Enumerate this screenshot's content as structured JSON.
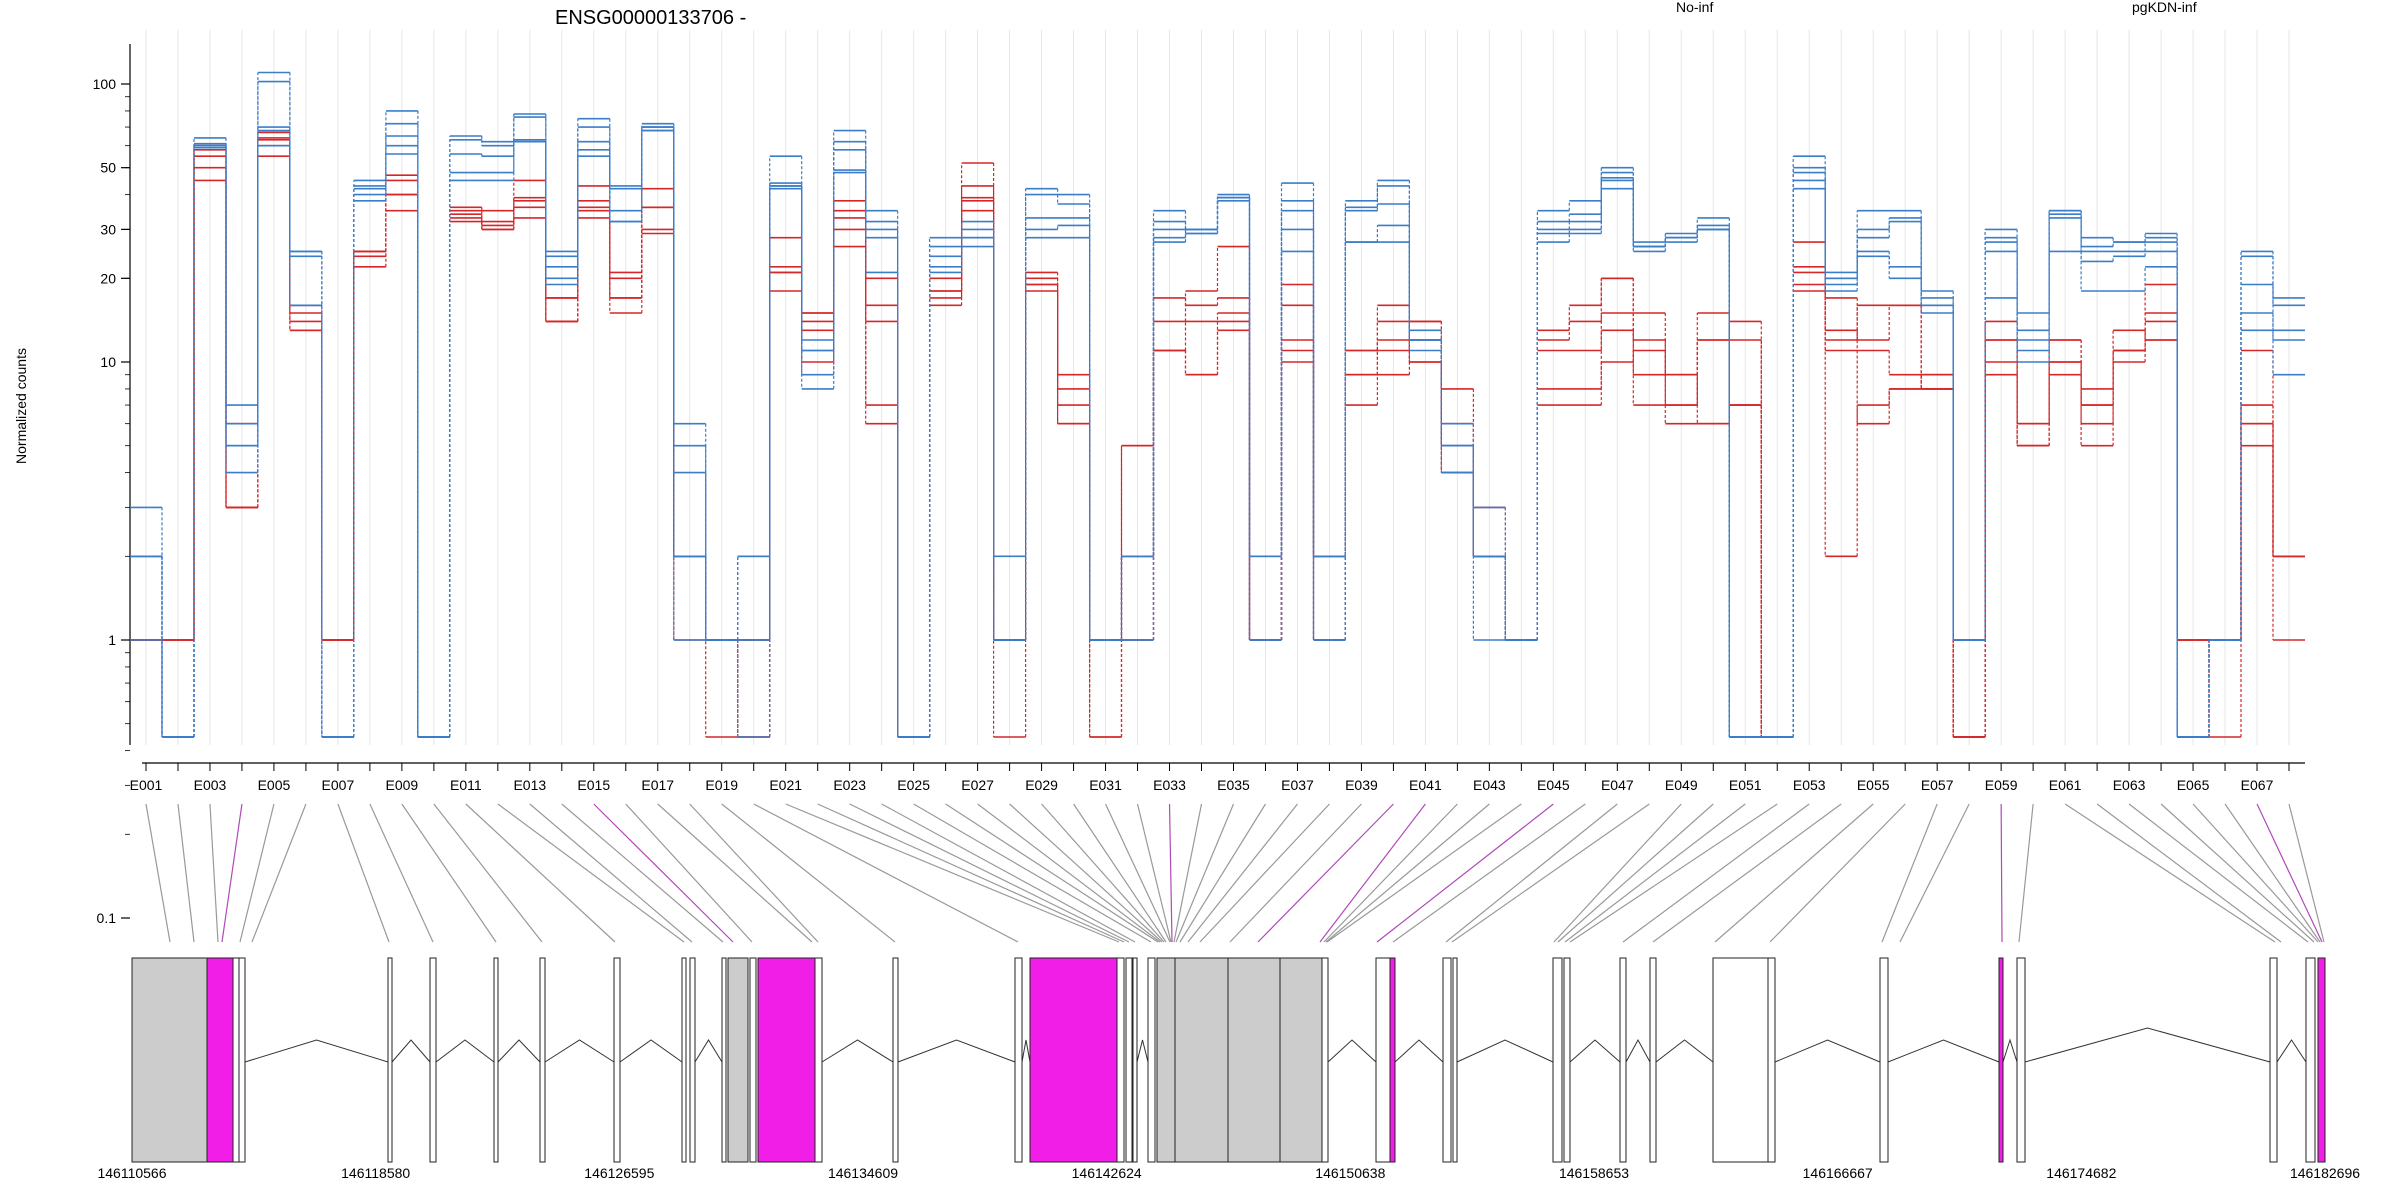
{
  "chart_data": {
    "type": "line",
    "title": "ENSG00000133706 -",
    "ylabel": "Normalized counts",
    "xlabel": "",
    "y_scale": "log (pseudo, with zero floor)",
    "y_ticks": [
      0.1,
      1,
      10,
      20,
      30,
      50,
      100
    ],
    "y_tick_labels": [
      "0.1",
      "1",
      "10",
      "20",
      "30",
      "50",
      "100"
    ],
    "ylim": [
      0.09,
      130
    ],
    "grid": "vertical, light, one line per exon",
    "legend": "top-right",
    "exons": [
      "E001",
      "E002",
      "E003",
      "E004",
      "E005",
      "E006",
      "E007",
      "E008",
      "E009",
      "E010",
      "E011",
      "E012",
      "E013",
      "E014",
      "E015",
      "E016",
      "E017",
      "E018",
      "E019",
      "E020",
      "E021",
      "E022",
      "E023",
      "E024",
      "E025",
      "E026",
      "E027",
      "E028",
      "E029",
      "E030",
      "E031",
      "E032",
      "E033",
      "E034",
      "E035",
      "E036",
      "E037",
      "E038",
      "E039",
      "E040",
      "E041",
      "E042",
      "E043",
      "E044",
      "E045",
      "E046",
      "E047",
      "E048",
      "E049",
      "E050",
      "E051",
      "E052",
      "E053",
      "E054",
      "E055",
      "E056",
      "E057",
      "E058",
      "E059",
      "E060",
      "E061",
      "E062",
      "E063",
      "E064",
      "E065",
      "E066",
      "E067",
      "E068"
    ],
    "exon_tick_labels": [
      "E001",
      "E003",
      "E005",
      "E007",
      "E009",
      "E011",
      "E013",
      "E015",
      "E017",
      "E019",
      "E021",
      "E023",
      "E025",
      "E027",
      "E029",
      "E031",
      "E033",
      "E035",
      "E037",
      "E039",
      "E041",
      "E043",
      "E045",
      "E047",
      "E049",
      "E051",
      "E053",
      "E055",
      "E057",
      "E059",
      "E061",
      "E063",
      "E065",
      "E067"
    ],
    "groups": [
      {
        "name": "No-inf",
        "color": "#d62728"
      },
      {
        "name": "pgKDN-inf",
        "color": "#3a7dc9"
      }
    ],
    "series": [
      {
        "group": "No-inf",
        "values": [
          2,
          1,
          60,
          6,
          67,
          14,
          1,
          25,
          45,
          0,
          35,
          30,
          38,
          17,
          38,
          21,
          36,
          2,
          1,
          1,
          21,
          15,
          35,
          20,
          0,
          18,
          39,
          1,
          19,
          8,
          1,
          5,
          14,
          18,
          26,
          1,
          16,
          2,
          11,
          16,
          10,
          4,
          2,
          1,
          12,
          14,
          20,
          15,
          7,
          15,
          7,
          0,
          19,
          17,
          12,
          16,
          8,
          0,
          12,
          5,
          10,
          5,
          11,
          15,
          1,
          1,
          5,
          2
        ]
      },
      {
        "group": "No-inf",
        "values": [
          1,
          1,
          55,
          3,
          63,
          15,
          1,
          22,
          40,
          0,
          33,
          31,
          36,
          14,
          33,
          15,
          30,
          2,
          1,
          1,
          18,
          10,
          30,
          16,
          0,
          16,
          35,
          1,
          18,
          7,
          1,
          1,
          11,
          9,
          15,
          1,
          10,
          1,
          9,
          12,
          10,
          8,
          2,
          1,
          8,
          8,
          15,
          12,
          6,
          6,
          7,
          0,
          22,
          2,
          7,
          8,
          9,
          0,
          10,
          6,
          12,
          8,
          10,
          12,
          0,
          1,
          6,
          2
        ]
      },
      {
        "group": "No-inf",
        "values": [
          1,
          1,
          50,
          3,
          60,
          13,
          1,
          25,
          35,
          0,
          34,
          32,
          39,
          17,
          35,
          17,
          36,
          1,
          1,
          0,
          22,
          13,
          33,
          14,
          0,
          18,
          43,
          1,
          19,
          6,
          1,
          2,
          11,
          14,
          14,
          1,
          12,
          2,
          9,
          11,
          14,
          5,
          2,
          1,
          11,
          11,
          13,
          7,
          7,
          12,
          14,
          0,
          18,
          13,
          11,
          9,
          8,
          0,
          9,
          6,
          12,
          7,
          11,
          14,
          1,
          0,
          7,
          2
        ]
      },
      {
        "group": "No-inf",
        "values": [
          1,
          0,
          45,
          3,
          55,
          13,
          1,
          25,
          40,
          0,
          32,
          30,
          33,
          14,
          36,
          17,
          29,
          2,
          0,
          1,
          21,
          14,
          26,
          7,
          0,
          17,
          38,
          0,
          21,
          6,
          0,
          1,
          11,
          9,
          13,
          1,
          11,
          1,
          7,
          9,
          12,
          6,
          3,
          1,
          7,
          7,
          10,
          11,
          9,
          6,
          12,
          0,
          21,
          11,
          6,
          8,
          8,
          0,
          12,
          5,
          9,
          6,
          13,
          12,
          1,
          1,
          6,
          1
        ]
      },
      {
        "group": "No-inf",
        "values": [
          1,
          1,
          58,
          3,
          64,
          16,
          1,
          24,
          47,
          0,
          36,
          35,
          45,
          14,
          43,
          20,
          42,
          2,
          1,
          0,
          28,
          15,
          38,
          6,
          0,
          20,
          52,
          1,
          20,
          9,
          0,
          5,
          17,
          16,
          17,
          1,
          19,
          2,
          11,
          14,
          14,
          4,
          2,
          1,
          13,
          16,
          20,
          9,
          9,
          12,
          7,
          0,
          27,
          12,
          16,
          16,
          9,
          0,
          14,
          5,
          10,
          7,
          11,
          19,
          1,
          1,
          11,
          2
        ]
      },
      {
        "group": "pgKDN-inf",
        "values": [
          3,
          0,
          64,
          7,
          110,
          25,
          0,
          45,
          80,
          0,
          65,
          62,
          78,
          24,
          75,
          42,
          72,
          6,
          1,
          2,
          55,
          11,
          68,
          35,
          0,
          28,
          30,
          2,
          42,
          40,
          1,
          2,
          35,
          30,
          38,
          2,
          44,
          2,
          38,
          45,
          12,
          5,
          3,
          1,
          35,
          38,
          50,
          27,
          28,
          33,
          0,
          0,
          55,
          21,
          35,
          35,
          18,
          1,
          30,
          15,
          35,
          28,
          27,
          29,
          0,
          1,
          25,
          17
        ]
      },
      {
        "group": "pgKDN-inf",
        "values": [
          2,
          0,
          60,
          6,
          102,
          24,
          0,
          43,
          72,
          0,
          63,
          60,
          76,
          22,
          70,
          43,
          70,
          5,
          1,
          2,
          44,
          12,
          62,
          32,
          0,
          26,
          32,
          1,
          40,
          37,
          1,
          2,
          32,
          29,
          39,
          2,
          38,
          1,
          36,
          43,
          13,
          4,
          2,
          1,
          32,
          34,
          48,
          26,
          29,
          31,
          0,
          0,
          50,
          20,
          30,
          33,
          17,
          1,
          28,
          13,
          33,
          26,
          27,
          28,
          0,
          1,
          24,
          16
        ]
      },
      {
        "group": "pgKDN-inf",
        "values": [
          2,
          0,
          61,
          5,
          70,
          25,
          0,
          42,
          65,
          0,
          56,
          55,
          63,
          20,
          62,
          35,
          68,
          4,
          1,
          1,
          43,
          11,
          58,
          30,
          0,
          24,
          28,
          1,
          33,
          33,
          1,
          2,
          30,
          30,
          39,
          1,
          35,
          2,
          35,
          37,
          12,
          5,
          2,
          1,
          30,
          32,
          46,
          25,
          28,
          30,
          0,
          0,
          48,
          20,
          28,
          32,
          16,
          1,
          27,
          12,
          34,
          25,
          25,
          27,
          0,
          1,
          19,
          13
        ]
      },
      {
        "group": "pgKDN-inf",
        "values": [
          1,
          0,
          59,
          5,
          68,
          16,
          0,
          40,
          60,
          0,
          48,
          48,
          62,
          25,
          58,
          32,
          70,
          2,
          1,
          1,
          43,
          9,
          49,
          28,
          0,
          22,
          28,
          1,
          30,
          31,
          1,
          1,
          28,
          29,
          39,
          1,
          30,
          1,
          27,
          31,
          12,
          5,
          1,
          1,
          29,
          30,
          45,
          26,
          27,
          30,
          0,
          0,
          45,
          19,
          25,
          22,
          16,
          1,
          25,
          11,
          35,
          23,
          24,
          25,
          0,
          1,
          15,
          12
        ]
      },
      {
        "group": "pgKDN-inf",
        "values": [
          2,
          0,
          60,
          4,
          60,
          16,
          0,
          38,
          56,
          0,
          45,
          45,
          62,
          19,
          55,
          32,
          68,
          1,
          1,
          0,
          42,
          8,
          48,
          21,
          0,
          21,
          26,
          1,
          28,
          28,
          1,
          1,
          27,
          30,
          40,
          1,
          25,
          1,
          27,
          27,
          11,
          6,
          2,
          1,
          27,
          29,
          42,
          26,
          28,
          30,
          0,
          0,
          42,
          18,
          24,
          20,
          15,
          1,
          17,
          10,
          25,
          18,
          18,
          22,
          0,
          1,
          13,
          9
        ]
      }
    ],
    "genomic_axis": {
      "tick_labels": [
        "146110566",
        "146118580",
        "146126595",
        "146134609",
        "146142624",
        "146150638",
        "146158653",
        "146166667",
        "146174682",
        "146182696"
      ]
    },
    "gene_model": {
      "highlighted_color": "#f01ee6",
      "intron_color": "#333333"
    }
  }
}
